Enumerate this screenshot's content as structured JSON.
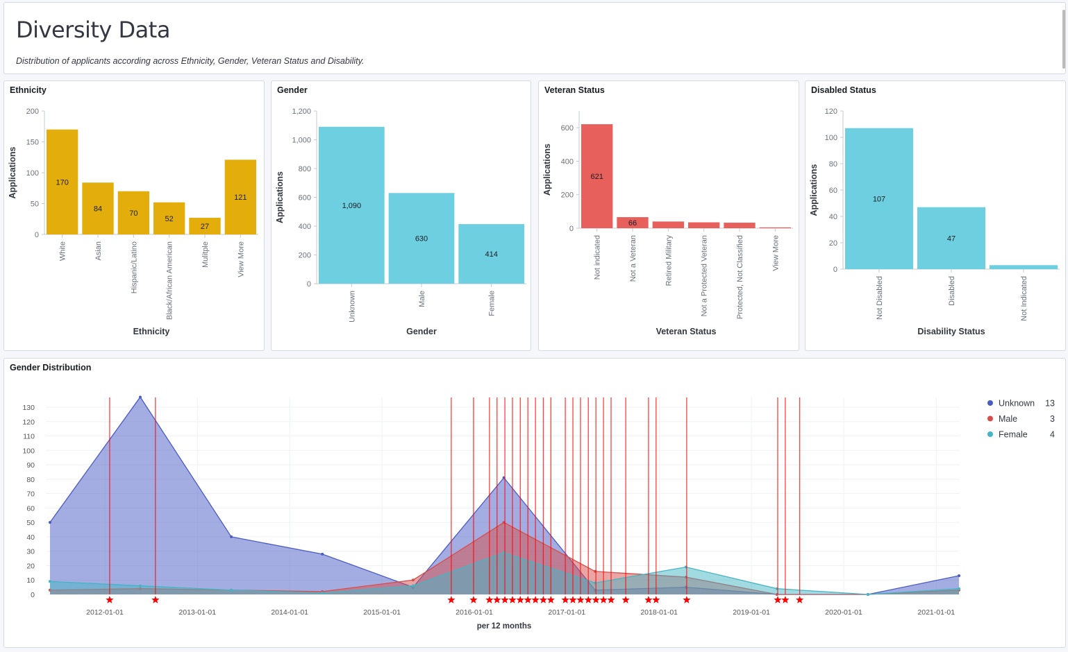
{
  "header": {
    "title": "Diversity Data",
    "subtitle": "Distribution of applicants according across Ethnicity, Gender, Veteran Status and Disability."
  },
  "chart_data": [
    {
      "type": "bar",
      "title": "Ethnicity",
      "xlabel": "Ethnicity",
      "ylabel": "Applications",
      "ylim": [
        0,
        200
      ],
      "yticks": [
        "0",
        "50",
        "100",
        "150",
        "200"
      ],
      "color": "#e3ad0c",
      "categories": [
        "White",
        "Asian",
        "Hispanic/Latino",
        "Black/African American",
        "Mulitple",
        "View More"
      ],
      "values": [
        170,
        84,
        70,
        52,
        27,
        121
      ],
      "labels": [
        "170",
        "84",
        "70",
        "52",
        "27",
        "121"
      ]
    },
    {
      "type": "bar",
      "title": "Gender",
      "xlabel": "Gender",
      "ylabel": "Applications",
      "ylim": [
        0,
        1200
      ],
      "yticks": [
        "0",
        "200",
        "400",
        "600",
        "800",
        "1,000",
        "1,200"
      ],
      "color": "#6dcfe0",
      "categories": [
        "Unknown",
        "Male",
        "Female"
      ],
      "values": [
        1090,
        630,
        414
      ],
      "labels": [
        "1,090",
        "630",
        "414"
      ]
    },
    {
      "type": "bar",
      "title": "Veteran Status",
      "xlabel": "Veteran Status",
      "ylabel": "Applications",
      "ylim": [
        0,
        700
      ],
      "yticks": [
        "0",
        "200",
        "400",
        "600"
      ],
      "color": "#e7605c",
      "categories": [
        "Not indicated",
        "Not a Veteran",
        "Retired Military",
        "Not a Protected Veteran",
        "Protected, Not Classified",
        "View More"
      ],
      "values": [
        621,
        66,
        40,
        35,
        33,
        5
      ],
      "labels": [
        "621",
        "66",
        "",
        "",
        "",
        ""
      ]
    },
    {
      "type": "bar",
      "title": "Disabled Status",
      "xlabel": "Disability Status",
      "ylabel": "Applications",
      "ylim": [
        0,
        120
      ],
      "yticks": [
        "0",
        "20",
        "40",
        "60",
        "80",
        "100",
        "120"
      ],
      "color": "#6dcfe0",
      "categories": [
        "Not Disabled",
        "Disabled",
        "Not Indicated"
      ],
      "values": [
        107,
        47,
        3
      ],
      "labels": [
        "107",
        "47",
        ""
      ]
    },
    {
      "type": "area",
      "title": "Gender Distribution",
      "xlabel": "per 12 months",
      "ylim": [
        0,
        130
      ],
      "yticks": [
        "0",
        "10",
        "20",
        "30",
        "40",
        "50",
        "60",
        "70",
        "80",
        "90",
        "100",
        "110",
        "120",
        "130"
      ],
      "xticks": [
        "2012-01-01",
        "2013-01-01",
        "2014-01-01",
        "2015-01-01",
        "2016-01-01",
        "2017-01-01",
        "2018-01-01",
        "2019-01-01",
        "2020-01-01",
        "2021-01-01"
      ],
      "x": [
        "2011-05-29",
        "2012-05-20",
        "2013-05-15",
        "2014-05-10",
        "2015-05-04",
        "2016-04-27",
        "2017-04-23",
        "2018-04-17",
        "2019-04-12",
        "2020-04-06",
        "2021-04-01"
      ],
      "series": [
        {
          "name": "Unknown",
          "color": "#4a5bc4",
          "values": [
            50,
            137,
            40,
            28,
            5,
            81,
            3,
            5,
            0,
            0,
            13
          ],
          "legend_value": "13"
        },
        {
          "name": "Male",
          "color": "#d64d4a",
          "values": [
            3,
            4,
            3,
            2,
            10,
            50,
            16,
            12,
            0,
            0,
            3
          ],
          "legend_value": "3"
        },
        {
          "name": "Female",
          "color": "#45b5c4",
          "values": [
            9,
            6,
            3,
            1,
            6,
            29,
            8,
            19,
            4,
            0,
            4
          ],
          "legend_value": "4"
        }
      ],
      "legend": "right",
      "annotation_color": "#ff0000",
      "annotations": [
        "2012-01-20",
        "2012-07-19",
        "2015-10-02",
        "2015-12-29",
        "2016-03-01",
        "2016-03-31",
        "2016-05-01",
        "2016-05-31",
        "2016-07-01",
        "2016-07-31",
        "2016-08-30",
        "2016-09-30",
        "2016-10-30",
        "2016-12-26",
        "2017-01-25",
        "2017-02-24",
        "2017-03-27",
        "2017-04-26",
        "2017-05-26",
        "2017-06-25",
        "2017-08-22",
        "2017-11-20",
        "2017-12-20",
        "2018-04-20",
        "2019-04-15",
        "2019-05-15",
        "2019-07-11"
      ]
    }
  ]
}
